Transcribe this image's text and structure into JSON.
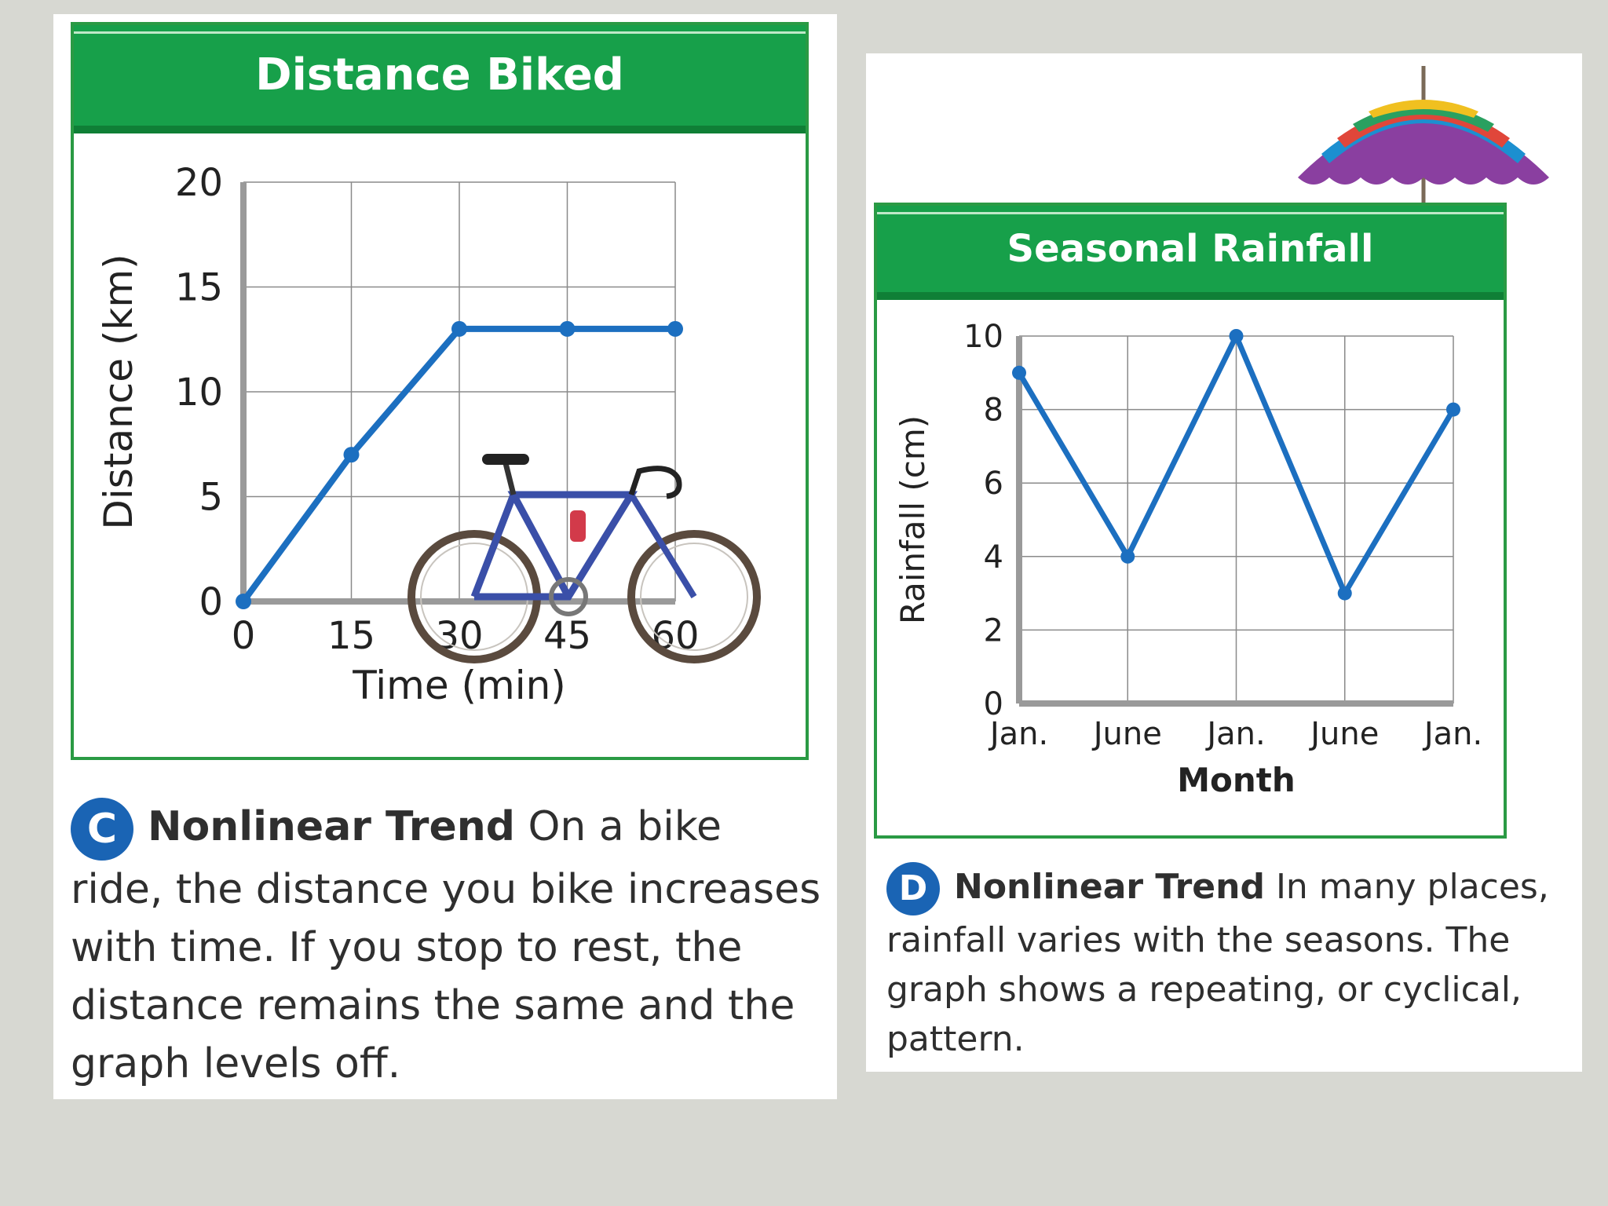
{
  "chart_data": [
    {
      "type": "line",
      "title": "Distance Biked",
      "xlabel": "Time (min)",
      "ylabel": "Distance (km)",
      "x": [
        0,
        15,
        30,
        45,
        60
      ],
      "series": [
        {
          "values": [
            0,
            7,
            13,
            13,
            13
          ]
        }
      ],
      "xticks": [
        "0",
        "15",
        "30",
        "45",
        "60"
      ],
      "yticks": [
        "0",
        "5",
        "10",
        "15",
        "20"
      ],
      "xlim": [
        0,
        60
      ],
      "ylim": [
        0,
        20
      ],
      "grid": true,
      "line_color": "#1c6fc0"
    },
    {
      "type": "line",
      "title": "Seasonal Rainfall",
      "xlabel": "Month",
      "ylabel": "Rainfall (cm)",
      "categories": [
        "Jan.",
        "June",
        "Jan.",
        "June",
        "Jan."
      ],
      "series": [
        {
          "values": [
            9,
            4,
            10,
            3,
            8
          ]
        }
      ],
      "yticks": [
        "0",
        "2",
        "4",
        "6",
        "8",
        "10"
      ],
      "ylim": [
        0,
        10
      ],
      "grid": true,
      "line_color": "#1c6fc0"
    }
  ],
  "caption_c": {
    "badge": "C",
    "lead": "Nonlinear Trend",
    "text": " On a bike ride, the distance you bike increases with time. If you stop to rest, the distance remains the same and the graph levels off."
  },
  "caption_d": {
    "badge": "D",
    "lead": "Nonlinear Trend",
    "text": " In many places, rainfall varies with the seasons. The graph shows a repeating, or cyclical, pattern."
  },
  "icons": [
    "bicycle-photo",
    "umbrella-illustration"
  ],
  "colors": {
    "header_green": "#17a04a",
    "badge_blue": "#1a64b4",
    "line_blue": "#1c6fc0"
  }
}
